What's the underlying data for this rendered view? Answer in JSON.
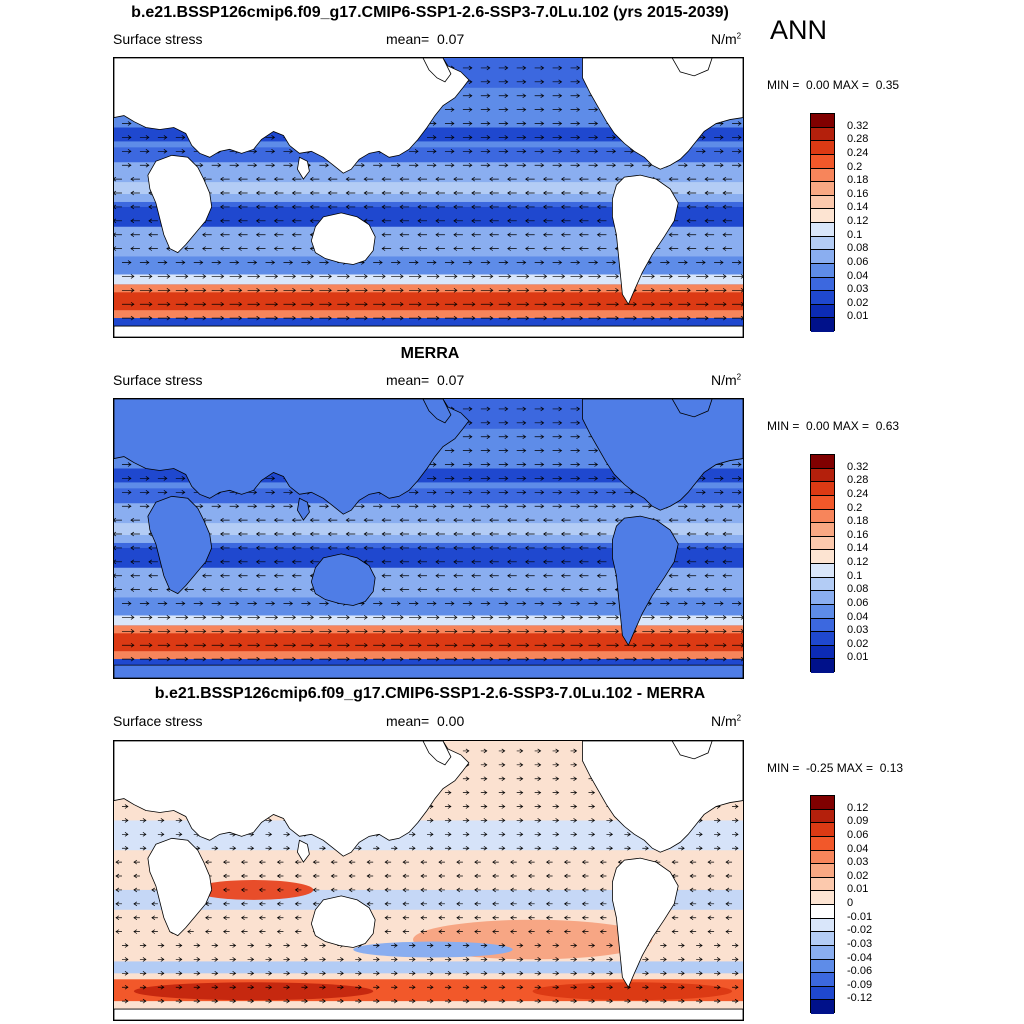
{
  "season": "ANN",
  "panels": [
    {
      "title": "b.e21.BSSP126cmip6.f09_g17.CMIP6-SSP1-2.6-SSP3-7.0Lu.102 (yrs 2015-2039)",
      "variable": "Surface stress",
      "mean_label": "mean=",
      "mean_value": "0.07",
      "units": "N/m",
      "units_exp": "2",
      "min_label": "MIN =",
      "min_value": "0.00",
      "max_label": "MAX =",
      "max_value": "0.35",
      "colorbar_labels": [
        "0.32",
        "0.28",
        "0.24",
        "0.2",
        "0.18",
        "0.16",
        "0.14",
        "0.12",
        "0.1",
        "0.08",
        "0.06",
        "0.04",
        "0.03",
        "0.02",
        "0.01"
      ],
      "colorbar_colors": [
        "#800000",
        "#b4200c",
        "#dc3a14",
        "#f2582a",
        "#f7855b",
        "#f9a883",
        "#fcc9ad",
        "#fde4d2",
        "#d9e6fa",
        "#b3ccf5",
        "#8aaef0",
        "#5e8ce8",
        "#3c68df",
        "#1f48cf",
        "#0c2bb5",
        "#00118a"
      ]
    },
    {
      "title": "MERRA",
      "variable": "Surface stress",
      "mean_label": "mean=",
      "mean_value": "0.07",
      "units": "N/m",
      "units_exp": "2",
      "min_label": "MIN =",
      "min_value": "0.00",
      "max_label": "MAX =",
      "max_value": "0.63",
      "colorbar_labels": [
        "0.32",
        "0.28",
        "0.24",
        "0.2",
        "0.18",
        "0.16",
        "0.14",
        "0.12",
        "0.1",
        "0.08",
        "0.06",
        "0.04",
        "0.03",
        "0.02",
        "0.01"
      ],
      "colorbar_colors": [
        "#800000",
        "#b4200c",
        "#dc3a14",
        "#f2582a",
        "#f7855b",
        "#f9a883",
        "#fcc9ad",
        "#fde4d2",
        "#d9e6fa",
        "#b3ccf5",
        "#8aaef0",
        "#5e8ce8",
        "#3c68df",
        "#1f48cf",
        "#0c2bb5",
        "#00118a"
      ]
    },
    {
      "title": "b.e21.BSSP126cmip6.f09_g17.CMIP6-SSP1-2.6-SSP3-7.0Lu.102 - MERRA",
      "variable": "Surface stress",
      "mean_label": "mean=",
      "mean_value": "0.00",
      "units": "N/m",
      "units_exp": "2",
      "min_label": "MIN =",
      "min_value": "-0.25",
      "max_label": "MAX =",
      "max_value": "0.13",
      "colorbar_labels": [
        "0.12",
        "0.09",
        "0.06",
        "0.04",
        "0.03",
        "0.02",
        "0.01",
        "0",
        "-0.01",
        "-0.02",
        "-0.03",
        "-0.04",
        "-0.06",
        "-0.09",
        "-0.12"
      ],
      "colorbar_colors": [
        "#800000",
        "#b4200c",
        "#dc3a14",
        "#f2582a",
        "#f7855b",
        "#f9a883",
        "#fcc9ad",
        "#fde4d2",
        "#ffffff",
        "#d9e6fa",
        "#b3ccf5",
        "#8aaef0",
        "#5e8ce8",
        "#3c68df",
        "#1f48cf",
        "#00118a"
      ]
    }
  ]
}
